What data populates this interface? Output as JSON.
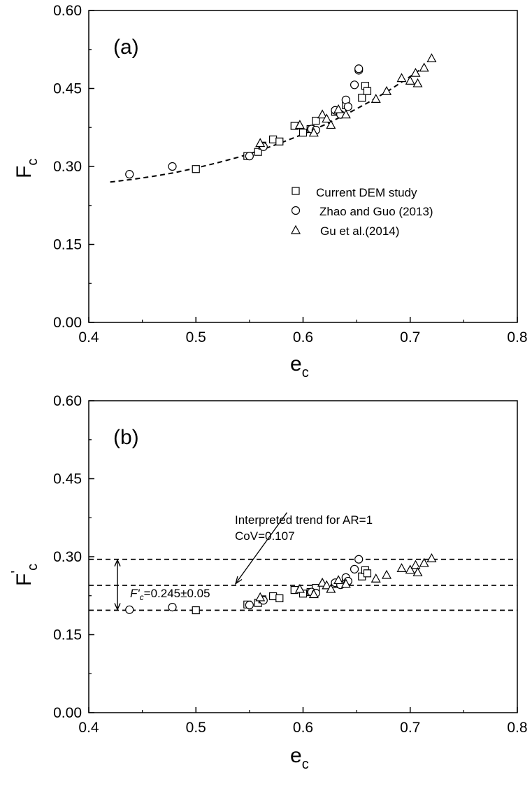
{
  "chart_data": [
    {
      "type": "scatter",
      "panel_label": "(a)",
      "xlabel_main": "e",
      "xlabel_sub": "c",
      "ylabel_main": "F",
      "ylabel_sub": "c",
      "ylabel_sup": "",
      "xlim": [
        0.4,
        0.8
      ],
      "ylim": [
        0.0,
        0.6
      ],
      "xticks": [
        0.4,
        0.5,
        0.6,
        0.7,
        0.8
      ],
      "xtick_labels": [
        "0.4",
        "0.5",
        "0.6",
        "0.7",
        "0.8"
      ],
      "yticks": [
        0.0,
        0.15,
        0.3,
        0.45,
        0.6
      ],
      "ytick_labels": [
        "0.00",
        "0.15",
        "0.30",
        "0.45",
        "0.60"
      ],
      "grid": false,
      "legend_position": "center-right",
      "series": [
        {
          "name": "Current DEM study",
          "marker": "square",
          "x": [
            0.5,
            0.548,
            0.558,
            0.562,
            0.572,
            0.578,
            0.592,
            0.6,
            0.607,
            0.612,
            0.63,
            0.64,
            0.655,
            0.658,
            0.66
          ],
          "y": [
            0.295,
            0.32,
            0.328,
            0.34,
            0.352,
            0.348,
            0.378,
            0.365,
            0.372,
            0.388,
            0.405,
            0.418,
            0.432,
            0.455,
            0.445
          ]
        },
        {
          "name": "Zhao and Guo (2013)",
          "marker": "circle",
          "x": [
            0.438,
            0.478,
            0.55,
            0.563,
            0.608,
            0.612,
            0.63,
            0.635,
            0.64,
            0.642,
            0.648,
            0.652,
            0.652
          ],
          "y": [
            0.285,
            0.3,
            0.32,
            0.338,
            0.372,
            0.37,
            0.408,
            0.4,
            0.428,
            0.415,
            0.457,
            0.485,
            0.488
          ]
        },
        {
          "name": "Gu et al.(2014)",
          "marker": "triangle",
          "x": [
            0.56,
            0.597,
            0.61,
            0.618,
            0.622,
            0.626,
            0.633,
            0.64,
            0.668,
            0.678,
            0.692,
            0.7,
            0.705,
            0.707,
            0.713,
            0.72
          ],
          "y": [
            0.345,
            0.38,
            0.365,
            0.4,
            0.392,
            0.38,
            0.41,
            0.4,
            0.43,
            0.445,
            0.47,
            0.465,
            0.48,
            0.46,
            0.49,
            0.508
          ]
        }
      ],
      "trend": {
        "style": "dashed",
        "x": [
          0.42,
          0.44,
          0.46,
          0.48,
          0.5,
          0.52,
          0.54,
          0.56,
          0.58,
          0.6,
          0.62,
          0.64,
          0.66,
          0.68,
          0.7,
          0.71
        ],
        "y": [
          0.27,
          0.275,
          0.281,
          0.288,
          0.297,
          0.307,
          0.318,
          0.331,
          0.346,
          0.362,
          0.38,
          0.4,
          0.422,
          0.446,
          0.473,
          0.487
        ]
      }
    },
    {
      "type": "scatter",
      "panel_label": "(b)",
      "xlabel_main": "e",
      "xlabel_sub": "c",
      "ylabel_main": "F",
      "ylabel_sub": "c",
      "ylabel_sup": "'",
      "xlim": [
        0.4,
        0.8
      ],
      "ylim": [
        0.0,
        0.6
      ],
      "xticks": [
        0.4,
        0.5,
        0.6,
        0.7,
        0.8
      ],
      "xtick_labels": [
        "0.4",
        "0.5",
        "0.6",
        "0.7",
        "0.8"
      ],
      "yticks": [
        0.0,
        0.15,
        0.3,
        0.45,
        0.6
      ],
      "ytick_labels": [
        "0.00",
        "0.15",
        "0.30",
        "0.45",
        "0.60"
      ],
      "grid": false,
      "series": [
        {
          "name": "Current DEM study",
          "marker": "square",
          "x": [
            0.5,
            0.548,
            0.558,
            0.562,
            0.572,
            0.578,
            0.592,
            0.6,
            0.607,
            0.612,
            0.63,
            0.64,
            0.655,
            0.658,
            0.66
          ],
          "y": [
            0.197,
            0.208,
            0.211,
            0.218,
            0.224,
            0.22,
            0.236,
            0.229,
            0.232,
            0.24,
            0.247,
            0.254,
            0.262,
            0.274,
            0.268
          ]
        },
        {
          "name": "Zhao and Guo (2013)",
          "marker": "circle",
          "x": [
            0.438,
            0.478,
            0.55,
            0.563,
            0.608,
            0.612,
            0.63,
            0.635,
            0.64,
            0.642,
            0.648,
            0.652
          ],
          "y": [
            0.198,
            0.203,
            0.207,
            0.216,
            0.232,
            0.23,
            0.25,
            0.246,
            0.26,
            0.253,
            0.276,
            0.295
          ]
        },
        {
          "name": "Gu et al.(2014)",
          "marker": "triangle",
          "x": [
            0.56,
            0.597,
            0.61,
            0.618,
            0.622,
            0.626,
            0.633,
            0.64,
            0.668,
            0.678,
            0.692,
            0.7,
            0.705,
            0.707,
            0.713,
            0.72
          ],
          "y": [
            0.222,
            0.238,
            0.228,
            0.25,
            0.245,
            0.238,
            0.255,
            0.248,
            0.258,
            0.265,
            0.278,
            0.275,
            0.284,
            0.27,
            0.288,
            0.297
          ]
        }
      ],
      "reference_lines": [
        {
          "y": 0.295,
          "style": "dashed"
        },
        {
          "y": 0.245,
          "style": "dashed"
        },
        {
          "y": 0.197,
          "style": "dashed"
        }
      ],
      "annotations": {
        "trend_title": "Interpreted trend for AR=1",
        "cov": "CoV=0.107",
        "band_label": "F'c=0.245±0.05",
        "band_label_main": "F'",
        "band_label_sub": "c",
        "band_label_rest": "=0.245±0.05",
        "band_top": 0.295,
        "band_bottom": 0.197,
        "arrow_from": {
          "x": 0.585,
          "y": 0.385
        },
        "arrow_to": {
          "x": 0.537,
          "y": 0.248
        }
      }
    }
  ]
}
